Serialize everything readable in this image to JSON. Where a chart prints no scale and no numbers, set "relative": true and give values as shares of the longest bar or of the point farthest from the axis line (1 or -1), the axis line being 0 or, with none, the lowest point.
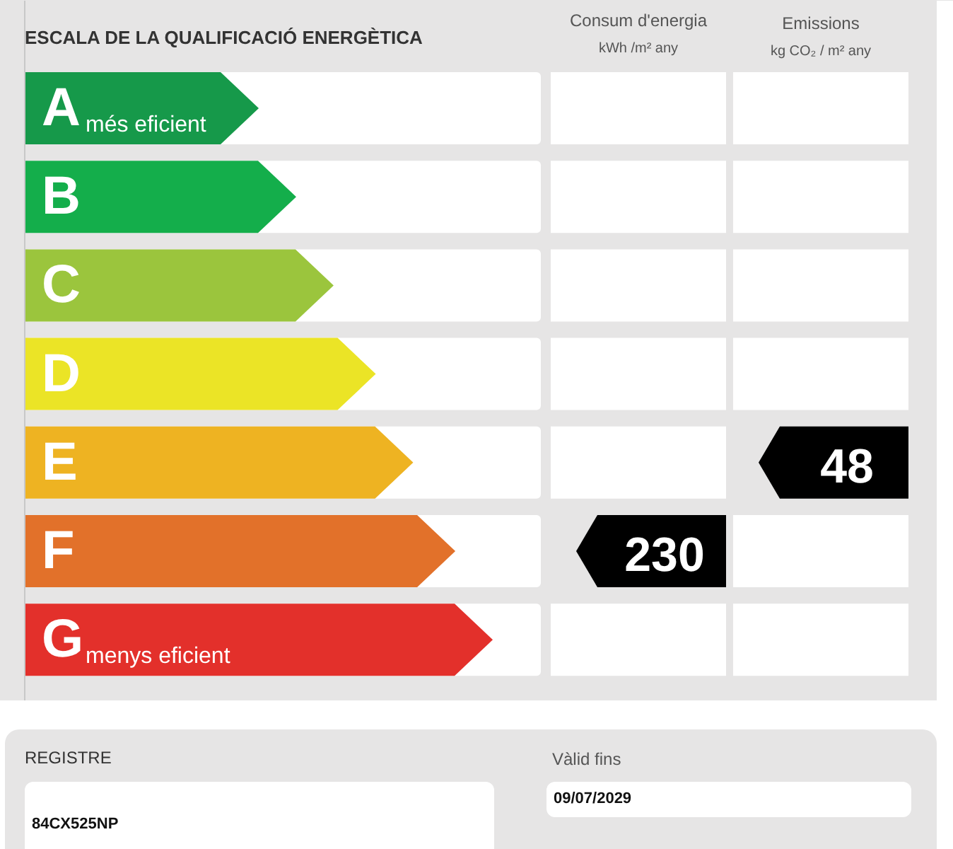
{
  "chart_data": [
    {
      "type": "bar",
      "orientation": "horizontal",
      "relative": true,
      "title": "ESCALA DE LA QUALIFICACIÓ ENERGÈTICA",
      "categories": [
        "A",
        "B",
        "C",
        "D",
        "E",
        "F",
        "G"
      ],
      "values": [
        0.5,
        0.58,
        0.66,
        0.75,
        0.83,
        0.92,
        1
      ],
      "colors": [
        "#16994a",
        "#14ae4b",
        "#9bc53d",
        "#ebe426",
        "#eeb322",
        "#e2712a",
        "#e3302b"
      ],
      "annotations": [
        {
          "text": "més eficient",
          "y": "A"
        },
        {
          "text": "menys eficient",
          "y": "G"
        }
      ]
    },
    {
      "type": "heatmap",
      "categories": [
        "Consum d'energia\nkWh /m² any",
        "Emissions\nkg CO₂ / m² any"
      ],
      "y_categories": [
        "A",
        "B",
        "C",
        "D",
        "E",
        "F",
        "G"
      ],
      "cells": [
        [
          null,
          null
        ],
        [
          null,
          null
        ],
        [
          null,
          null
        ],
        [
          null,
          null
        ],
        [
          null,
          48
        ],
        [
          230,
          null
        ],
        [
          null,
          null
        ]
      ],
      "data_labels": true,
      "tick_labels": "x"
    },
    {
      "type": "other",
      "annotations": [
        "REGISTRE",
        "84CX525NP",
        "Vàlid fins",
        "09/07/2029"
      ]
    }
  ]
}
